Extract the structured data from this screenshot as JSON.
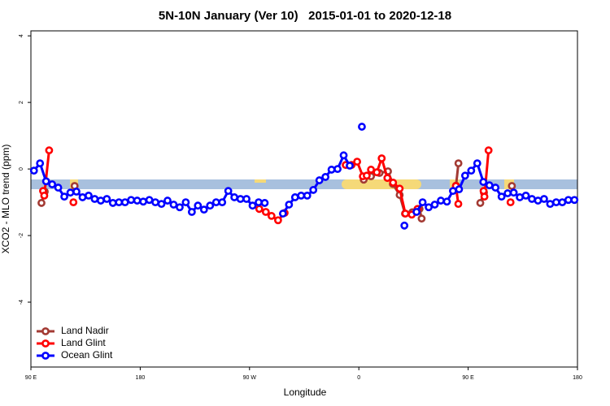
{
  "chart_data": {
    "type": "line",
    "title": "5N-10N January (Ver 10)   2015-01-01 to 2020-12-18",
    "x_label": "Longitude",
    "y_label": "XCO2 - MLO trend (ppm)",
    "xlim": [
      90,
      540
    ],
    "ylim": [
      -5.95,
      4.15
    ],
    "xticks": [
      {
        "value": 90,
        "label": "90 E"
      },
      180,
      {
        "value": 270,
        "label": "90 W"
      },
      {
        "value": 360,
        "label": "0"
      },
      {
        "value": 450,
        "label": "90 E"
      },
      {
        "value": 540,
        "label": "180"
      }
    ],
    "yticks": [
      -4,
      -2,
      0,
      2,
      4
    ],
    "legend": "bottom-left",
    "series": [
      {
        "name": "Land Nadir",
        "color": "#a33a33",
        "x": [
          98.7,
          101.4,
          110,
          126,
          300,
          364,
          370,
          377,
          384,
          388,
          393.6,
          398,
          404,
          410,
          411.7,
          420,
          440,
          442,
          450,
          460,
          463,
          470,
          486
        ],
        "values": [
          -1.02,
          -0.68,
          null,
          -0.51,
          null,
          -0.32,
          -0.22,
          -0.12,
          -0.07,
          -0.45,
          -0.78,
          -1.34,
          -1.3,
          -1.2,
          -1.49,
          null,
          -0.5,
          0.17,
          null,
          -1.02,
          -0.71,
          null,
          -0.51
        ]
      },
      {
        "name": "Land Glint",
        "color": "#ff0000",
        "x": [
          100,
          101,
          105,
          115,
          125,
          200,
          278,
          283.4,
          288.1,
          293.5,
          298.9,
          320,
          349.2,
          354,
          358.6,
          363.3,
          366.5,
          370,
          374.8,
          378.8,
          383.5,
          388.2,
          393.6,
          398.3,
          403.6,
          408.3,
          420,
          439.9,
          441.9,
          450,
          462.7,
          463.4,
          466.8,
          475,
          484.9
        ],
        "values": [
          -0.66,
          -0.8,
          0.56,
          null,
          -1.0,
          null,
          -1.2,
          -1.29,
          -1.41,
          -1.54,
          -1.32,
          null,
          0.12,
          0.12,
          0.22,
          -0.22,
          -0.2,
          -0.02,
          -0.1,
          0.32,
          -0.27,
          -0.41,
          -0.59,
          -1.34,
          -1.37,
          -1.2,
          null,
          -0.51,
          -1.05,
          null,
          -0.66,
          -0.83,
          0.56,
          null,
          -1.0
        ]
      },
      {
        "name": "Ocean Glint",
        "color": "#0000ff",
        "x": [
          92.5,
          97.5,
          102.5,
          107.5,
          112.5,
          117.5,
          122.5,
          127.5,
          132.5,
          137.5,
          142.5,
          147.5,
          152.5,
          157.5,
          162.5,
          167.5,
          172.5,
          177.5,
          182.5,
          187.5,
          192.5,
          197.5,
          202.5,
          207.5,
          212.5,
          217.5,
          222.5,
          227.5,
          232.5,
          237.5,
          242.5,
          247.5,
          252.5,
          257.5,
          262.5,
          267.5,
          272.5,
          277.5,
          282.5,
          287.5,
          297.5,
          302.5,
          307.5,
          312.5,
          317.5,
          322.5,
          327.5,
          332.5,
          337.5,
          342.5,
          347.5,
          352.5,
          357.5,
          362.5,
          367.5,
          397.5,
          402.5,
          407.5,
          412.5,
          417.5,
          422.5,
          427.5,
          432.5,
          437.5,
          442.5,
          447.5,
          452.5,
          457.5,
          462.5,
          467.5,
          472.5,
          477.5,
          482.5,
          487.5,
          492.5,
          497.5,
          502.5,
          507.5,
          512.5,
          517.5,
          522.5,
          527.5,
          532.5,
          537.5
        ],
        "values": [
          -0.05,
          0.17,
          -0.37,
          -0.46,
          -0.56,
          -0.83,
          -0.71,
          -0.68,
          -0.85,
          -0.8,
          -0.9,
          -0.95,
          -0.9,
          -1.02,
          -1.0,
          -1.0,
          -0.93,
          -0.95,
          -0.98,
          -0.93,
          -1.0,
          -1.05,
          -0.95,
          -1.07,
          -1.15,
          -1.0,
          -1.29,
          -1.1,
          -1.22,
          -1.1,
          -1.0,
          -1.0,
          -0.66,
          -0.85,
          -0.9,
          -0.9,
          -1.1,
          -1.0,
          -1.02,
          null,
          -1.34,
          -1.07,
          -0.85,
          -0.8,
          -0.8,
          -0.63,
          -0.34,
          -0.24,
          -0.02,
          0,
          0.41,
          0.1,
          null,
          1.27,
          null,
          -1.7,
          null,
          -1.29,
          -1.0,
          -1.15,
          -1.07,
          -0.95,
          -0.98,
          -0.66,
          -0.61,
          -0.2,
          -0.05,
          0.17,
          -0.39,
          -0.49,
          -0.56,
          -0.83,
          -0.73,
          -0.71,
          -0.85,
          -0.8,
          -0.9,
          -0.95,
          -0.9,
          -1.05,
          -1.0,
          -1.0,
          -0.93,
          -0.93
        ]
      }
    ]
  }
}
